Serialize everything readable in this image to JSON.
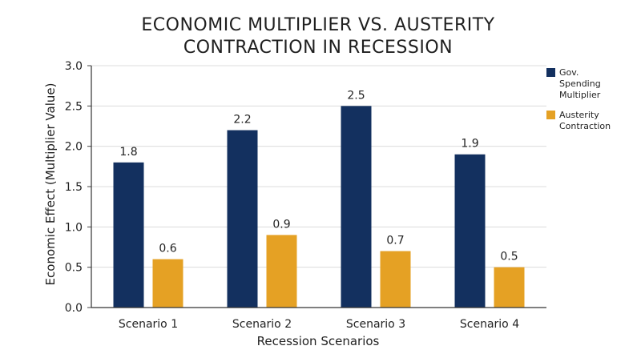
{
  "chart_data": {
    "type": "bar",
    "title": "ECONOMIC MULTIPLIER VS. AUSTERITY CONTRACTION IN RECESSION",
    "title_lines": [
      "ECONOMIC MULTIPLIER VS. AUSTERITY",
      "CONTRACTION IN RECESSION"
    ],
    "xlabel": "Recession Scenarios",
    "ylabel": "Economic Effect (Multiplier Value)",
    "categories": [
      "Scenario 1",
      "Scenario 2",
      "Scenario 3",
      "Scenario 4"
    ],
    "ylim": [
      0,
      3.0
    ],
    "yticks": [
      "0.0",
      "0.5",
      "1.0",
      "1.5",
      "2.0",
      "2.5",
      "3.0"
    ],
    "grid": true,
    "legend_position": "right",
    "series": [
      {
        "name": "Gov. Spending Multiplier",
        "legend_lines": [
          "Gov.",
          "Spending",
          "Multiplier"
        ],
        "color": "#13305f",
        "values": [
          1.8,
          2.2,
          2.5,
          1.9
        ],
        "labels": [
          "1.8",
          "2.2",
          "2.5",
          "1.9"
        ]
      },
      {
        "name": "Austerity Contraction",
        "legend_lines": [
          "Austerity",
          "Contraction"
        ],
        "color": "#e5a124",
        "values": [
          0.6,
          0.9,
          0.7,
          0.5
        ],
        "labels": [
          "0.6",
          "0.9",
          "0.7",
          "0.5"
        ]
      }
    ]
  }
}
